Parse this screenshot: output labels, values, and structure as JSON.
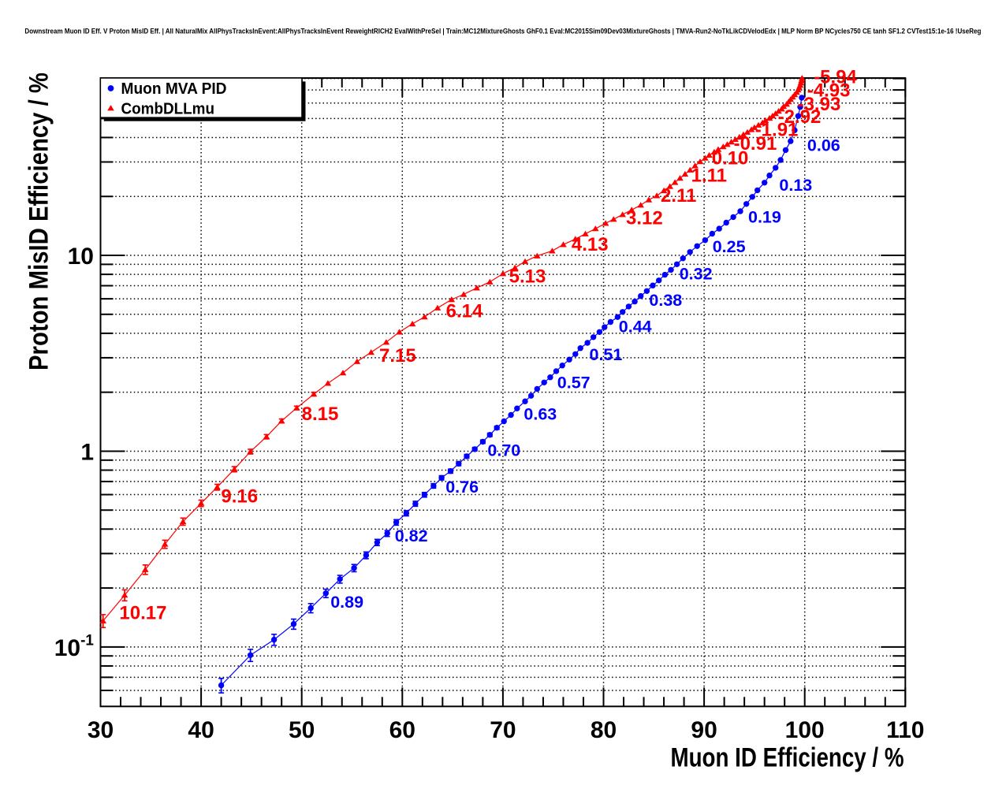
{
  "page": {
    "background": "#ffffff"
  },
  "chart_data": {
    "type": "scatter",
    "title": "Downstream Muon ID Eff. V Proton MisID Eff. | All NaturalMix AllPhysTracksInEvent:AllPhysTracksInEvent ReweightRICH2 EvalWithPreSel | Train:MC12MixtureGhosts GhF0.1 Eval:MC2015Sim09Dev03MixtureGhosts | TMVA-Run2-NoTkLikCDVelodEdx | MLP Norm BP NCycles750 CE tanh SF1.2 CVTest15:1e-16 !UseReg",
    "xlabel": "Muon ID Efficiency / %",
    "ylabel": "Proton MisID Efficiency / %",
    "xlim": [
      30,
      110
    ],
    "ylim": [
      0.0497,
      80.5
    ],
    "xscale": "linear",
    "yscale": "log",
    "x_major_ticks": [
      30,
      40,
      50,
      60,
      70,
      80,
      90,
      100,
      110
    ],
    "x_minor_tick_step": 2,
    "y_tick_labels": [
      {
        "value": 0.1,
        "base": "10",
        "exponent": "-1"
      },
      {
        "value": 1,
        "base": "1"
      },
      {
        "value": 10,
        "base": "10"
      }
    ],
    "grid": {
      "vertical": "x-major",
      "horizontal": "y-log-decades-and-minors",
      "style": "dotted",
      "color": "#000000"
    },
    "legend": {
      "position": "top-left",
      "entries": [
        {
          "label": "Muon MVA PID",
          "marker": "circle",
          "color": "#0000ff"
        },
        {
          "label": "CombDLLmu",
          "marker": "triangle",
          "color": "#ff0000"
        }
      ]
    },
    "series": [
      {
        "name": "Muon MVA PID",
        "color": "#0000ff",
        "marker": "circle",
        "points": [
          [
            42.0,
            0.0637,
            0.00543
          ],
          [
            44.9,
            0.0908,
            0.00648
          ],
          [
            47.25,
            0.109,
            0.0071
          ],
          [
            49.2,
            0.131,
            0.00778
          ],
          [
            50.9,
            0.158,
            0.00855
          ],
          [
            52.4,
            0.188,
            0.00932
          ],
          [
            53.8,
            0.222,
            0.01013
          ],
          [
            55.2,
            0.253,
            0.01082
          ],
          [
            56.4,
            0.294,
            0.01166
          ],
          [
            57.5,
            0.342,
            0.01258
          ],
          [
            58.5,
            0.38,
            0.01326
          ],
          [
            59.4,
            0.433,
            0.01415
          ],
          [
            60.4,
            0.482,
            0.01493
          ],
          [
            61.3,
            0.539,
            0.01579
          ],
          [
            62.2,
            0.599,
            0.01664
          ],
          [
            63.1,
            0.665,
            0.01754
          ],
          [
            63.9,
            0.731,
            0.01839
          ],
          [
            64.8,
            0.791,
            0.01912
          ],
          [
            65.6,
            0.863,
            0.01998
          ],
          [
            66.4,
            0.942,
            0.02087
          ],
          [
            67.2,
            1.024,
            0.02176
          ],
          [
            68.0,
            1.118,
            0.02274
          ],
          [
            68.7,
            1.212,
            0.02367
          ],
          [
            69.4,
            1.317,
            0.02468
          ],
          [
            70.1,
            1.421,
            0.02563
          ],
          [
            70.8,
            1.531,
            0.02661
          ],
          [
            71.4,
            1.653,
            0.02765
          ],
          [
            72.2,
            1.797,
            0.02883
          ],
          [
            72.8,
            1.92,
            0.0298
          ],
          [
            73.4,
            2.08,
            0.03101
          ],
          [
            74.1,
            2.242,
            0.0322
          ],
          [
            74.7,
            2.384,
            0.0332
          ],
          [
            75.3,
            2.563,
            0.03443
          ],
          [
            75.9,
            2.74,
            0.03559
          ],
          [
            76.6,
            2.937,
            0.03685
          ],
          [
            77.2,
            3.13,
            0.03804
          ],
          [
            77.7,
            3.36,
            0.03942
          ],
          [
            78.4,
            3.576,
            0.04066
          ],
          [
            79.0,
            3.82,
            0.04203
          ],
          [
            79.6,
            4.06,
            0.04333
          ],
          [
            80.1,
            4.3,
            0.04459
          ],
          [
            80.7,
            4.57,
            0.04597
          ],
          [
            81.4,
            4.84,
            0.04731
          ],
          [
            81.9,
            5.14,
            0.04875
          ],
          [
            82.5,
            5.48,
            0.05034
          ],
          [
            83.1,
            5.81,
            0.05183
          ],
          [
            83.7,
            6.2,
            0.05354
          ],
          [
            84.3,
            6.57,
            0.05512
          ],
          [
            84.9,
            7.02,
            0.05697
          ],
          [
            85.5,
            7.45,
            0.05869
          ],
          [
            86.1,
            7.96,
            0.06067
          ],
          [
            86.7,
            8.43,
            0.06243
          ],
          [
            87.3,
            9.01,
            0.06455
          ],
          [
            87.9,
            9.66,
            0.06683
          ],
          [
            88.6,
            10.4,
            0.06935
          ],
          [
            89.3,
            11.15,
            0.0718
          ],
          [
            90.1,
            11.95,
            0.07433
          ],
          [
            90.8,
            12.9,
            0.07723
          ],
          [
            91.5,
            13.7,
            0.07959
          ],
          [
            92.2,
            14.7,
            0.08245
          ],
          [
            92.9,
            15.7,
            0.0852
          ],
          [
            93.6,
            16.8,
            0.08814
          ],
          [
            94.2,
            18.3,
            0.09199
          ],
          [
            94.8,
            19.9,
            0.09593
          ],
          [
            95.3,
            21.5,
            0.09971
          ],
          [
            96.0,
            23.5,
            0.10424
          ],
          [
            96.5,
            25.6,
            0.1088
          ],
          [
            97.1,
            28.0,
            0.11379
          ],
          [
            97.6,
            30.7,
            0.11915
          ],
          [
            98.1,
            34.5,
            0.1263
          ],
          [
            98.6,
            38.3,
            0.13308
          ],
          [
            99.0,
            43.6,
            0.14199
          ],
          [
            99.35,
            51.5,
            0.15432
          ],
          [
            99.55,
            57.3,
            0.16277
          ],
          [
            99.7,
            63.9,
            0.17189
          ]
        ],
        "labels": [
          {
            "text": "0.89",
            "x": 52.86,
            "y": 0.1693
          },
          {
            "text": "0.82",
            "x": 59.25,
            "y": 0.369
          },
          {
            "text": "0.76",
            "x": 64.3,
            "y": 0.655
          },
          {
            "text": "0.70",
            "x": 68.47,
            "y": 1.008
          },
          {
            "text": "0.63",
            "x": 72.08,
            "y": 1.545
          },
          {
            "text": "0.57",
            "x": 75.4,
            "y": 2.24
          },
          {
            "text": "0.51",
            "x": 78.59,
            "y": 3.11
          },
          {
            "text": "0.44",
            "x": 81.51,
            "y": 4.32
          },
          {
            "text": "0.38",
            "x": 84.54,
            "y": 5.89
          },
          {
            "text": "0.32",
            "x": 87.54,
            "y": 8.04
          },
          {
            "text": "0.25",
            "x": 90.83,
            "y": 11.07
          },
          {
            "text": "0.19",
            "x": 94.38,
            "y": 15.68
          },
          {
            "text": "0.13",
            "x": 97.47,
            "y": 22.82
          },
          {
            "text": "0.06",
            "x": 100.25,
            "y": 36.5
          }
        ]
      },
      {
        "name": "CombDLLmu",
        "color": "#ff0000",
        "marker": "triangle",
        "points": [
          [
            30.25,
            0.136,
            0.01026
          ],
          [
            32.4,
            0.184,
            0.01194
          ],
          [
            34.45,
            0.2485,
            0.01387
          ],
          [
            36.4,
            0.335,
            0.01611
          ],
          [
            38.2,
            0.437,
            0.0184
          ],
          [
            40.0,
            0.542,
            0.02049
          ],
          [
            41.6,
            0.655,
            0.02252
          ],
          [
            43.3,
            0.809,
            0.02503
          ],
          [
            44.9,
            0.995,
            0.02776
          ],
          [
            46.5,
            1.185,
            0.03029
          ],
          [
            48.0,
            1.427,
            0.03324
          ],
          [
            49.5,
            1.663,
            0.03589
          ],
          [
            51.2,
            1.956,
            0.03892
          ],
          [
            52.6,
            2.223,
            0.04149
          ],
          [
            54.1,
            2.511,
            0.0441
          ],
          [
            55.5,
            2.87,
            0.04714
          ],
          [
            56.9,
            3.2,
            0.04978
          ],
          [
            58.4,
            3.6,
            0.0528
          ],
          [
            59.7,
            4.06,
            0.05607
          ],
          [
            61.0,
            4.47,
            0.05884
          ],
          [
            62.2,
            4.85,
            0.06128
          ],
          [
            63.5,
            5.39,
            0.06461
          ],
          [
            64.9,
            5.95,
            0.06788
          ],
          [
            66.1,
            6.32,
            0.06996
          ],
          [
            67.4,
            6.82,
            0.07267
          ],
          [
            68.7,
            7.32,
            0.07529
          ],
          [
            70.0,
            8.07,
            0.07905
          ],
          [
            71.2,
            8.65,
            0.08184
          ],
          [
            72.2,
            9.31,
            0.08491
          ],
          [
            73.4,
            9.94,
            0.08774
          ],
          [
            74.9,
            10.54,
            0.09034
          ],
          [
            76.0,
            11.36,
            0.09379
          ],
          [
            77.2,
            12.12,
            0.09688
          ],
          [
            78.2,
            12.88,
            0.09987
          ],
          [
            79.2,
            13.69,
            0.10296
          ],
          [
            80.2,
            14.59,
            0.10629
          ],
          [
            81.0,
            15.29,
            0.10881
          ],
          [
            81.9,
            16.16,
            0.11187
          ],
          [
            82.8,
            17.07,
            0.11497
          ],
          [
            83.7,
            18.07,
            0.11829
          ],
          [
            84.5,
            19.23,
            0.12203
          ],
          [
            85.3,
            20.18,
            0.12501
          ],
          [
            86.0,
            21.4,
            0.12873
          ],
          [
            86.6,
            22.5,
            0.132
          ],
          [
            87.1,
            23.6,
            0.13519
          ],
          [
            87.6,
            24.8,
            0.13858
          ],
          [
            88.1,
            26.0,
            0.1419
          ],
          [
            88.6,
            27.3,
            0.1454
          ],
          [
            89.1,
            28.7,
            0.14908
          ],
          [
            89.6,
            30.1,
            0.15267
          ],
          [
            90.1,
            31.4,
            0.15594
          ],
          [
            90.5,
            32.5,
            0.15864
          ],
          [
            91.0,
            33.7,
            0.16155
          ],
          [
            91.4,
            34.8,
            0.16416
          ],
          [
            91.9,
            35.9,
            0.16674
          ],
          [
            92.3,
            36.9,
            0.16904
          ],
          [
            92.7,
            38.0,
            0.17154
          ],
          [
            93.1,
            39.1,
            0.17401
          ],
          [
            93.5,
            40.2,
            0.17644
          ],
          [
            93.9,
            41.4,
            0.17905
          ],
          [
            94.3,
            42.6,
            0.18163
          ],
          [
            94.7,
            43.9,
            0.18438
          ],
          [
            95.0,
            45.0,
            0.18668
          ],
          [
            95.4,
            46.3,
            0.18935
          ],
          [
            95.8,
            47.6,
            0.19199
          ],
          [
            96.1,
            48.9,
            0.1946
          ],
          [
            96.5,
            50.2,
            0.19717
          ],
          [
            96.8,
            51.6,
            0.1999
          ],
          [
            97.1,
            53.0,
            0.20259
          ],
          [
            97.4,
            54.5,
            0.20544
          ],
          [
            97.7,
            56.0,
            0.20825
          ],
          [
            97.9,
            57.6,
            0.2112
          ],
          [
            98.2,
            59.2,
            0.21411
          ],
          [
            98.4,
            60.9,
            0.21717
          ],
          [
            98.6,
            62.6,
            0.22018
          ],
          [
            98.8,
            64.4,
            0.22332
          ],
          [
            99.0,
            66.2,
            0.22642
          ],
          [
            99.2,
            68.1,
            0.22964
          ],
          [
            99.35,
            70.0,
            0.23283
          ],
          [
            99.45,
            72.0,
            0.23613
          ],
          [
            99.55,
            74.0,
            0.23939
          ],
          [
            99.62,
            76.1,
            0.24276
          ],
          [
            99.68,
            78.2,
            0.24609
          ],
          [
            99.73,
            80.4,
            0.24952
          ]
        ],
        "labels": [
          {
            "text": "10.17",
            "x": 31.87,
            "y": 0.1489
          },
          {
            "text": "9.16",
            "x": 41.98,
            "y": 0.587
          },
          {
            "text": "8.15",
            "x": 49.99,
            "y": 1.546
          },
          {
            "text": "7.15",
            "x": 57.7,
            "y": 3.065
          },
          {
            "text": "6.14",
            "x": 64.33,
            "y": 5.18
          },
          {
            "text": "5.13",
            "x": 70.6,
            "y": 7.79
          },
          {
            "text": "4.13",
            "x": 76.82,
            "y": 11.32
          },
          {
            "text": "3.12",
            "x": 82.23,
            "y": 15.46
          },
          {
            "text": "2.11",
            "x": 85.68,
            "y": 20.17
          },
          {
            "text": "1.11",
            "x": 88.71,
            "y": 25.51
          },
          {
            "text": "0.10",
            "x": 90.75,
            "y": 31.27
          },
          {
            "text": "-0.91",
            "x": 92.94,
            "y": 37.05
          },
          {
            "text": "-1.91",
            "x": 95.06,
            "y": 43.67
          },
          {
            "text": "-2.92",
            "x": 97.33,
            "y": 50.87
          },
          {
            "text": "-3.93",
            "x": 99.29,
            "y": 59.0
          },
          {
            "text": "-4.93",
            "x": 100.24,
            "y": 69.4
          },
          {
            "text": "-5.94",
            "x": 100.9,
            "y": 81.2
          }
        ]
      }
    ]
  }
}
